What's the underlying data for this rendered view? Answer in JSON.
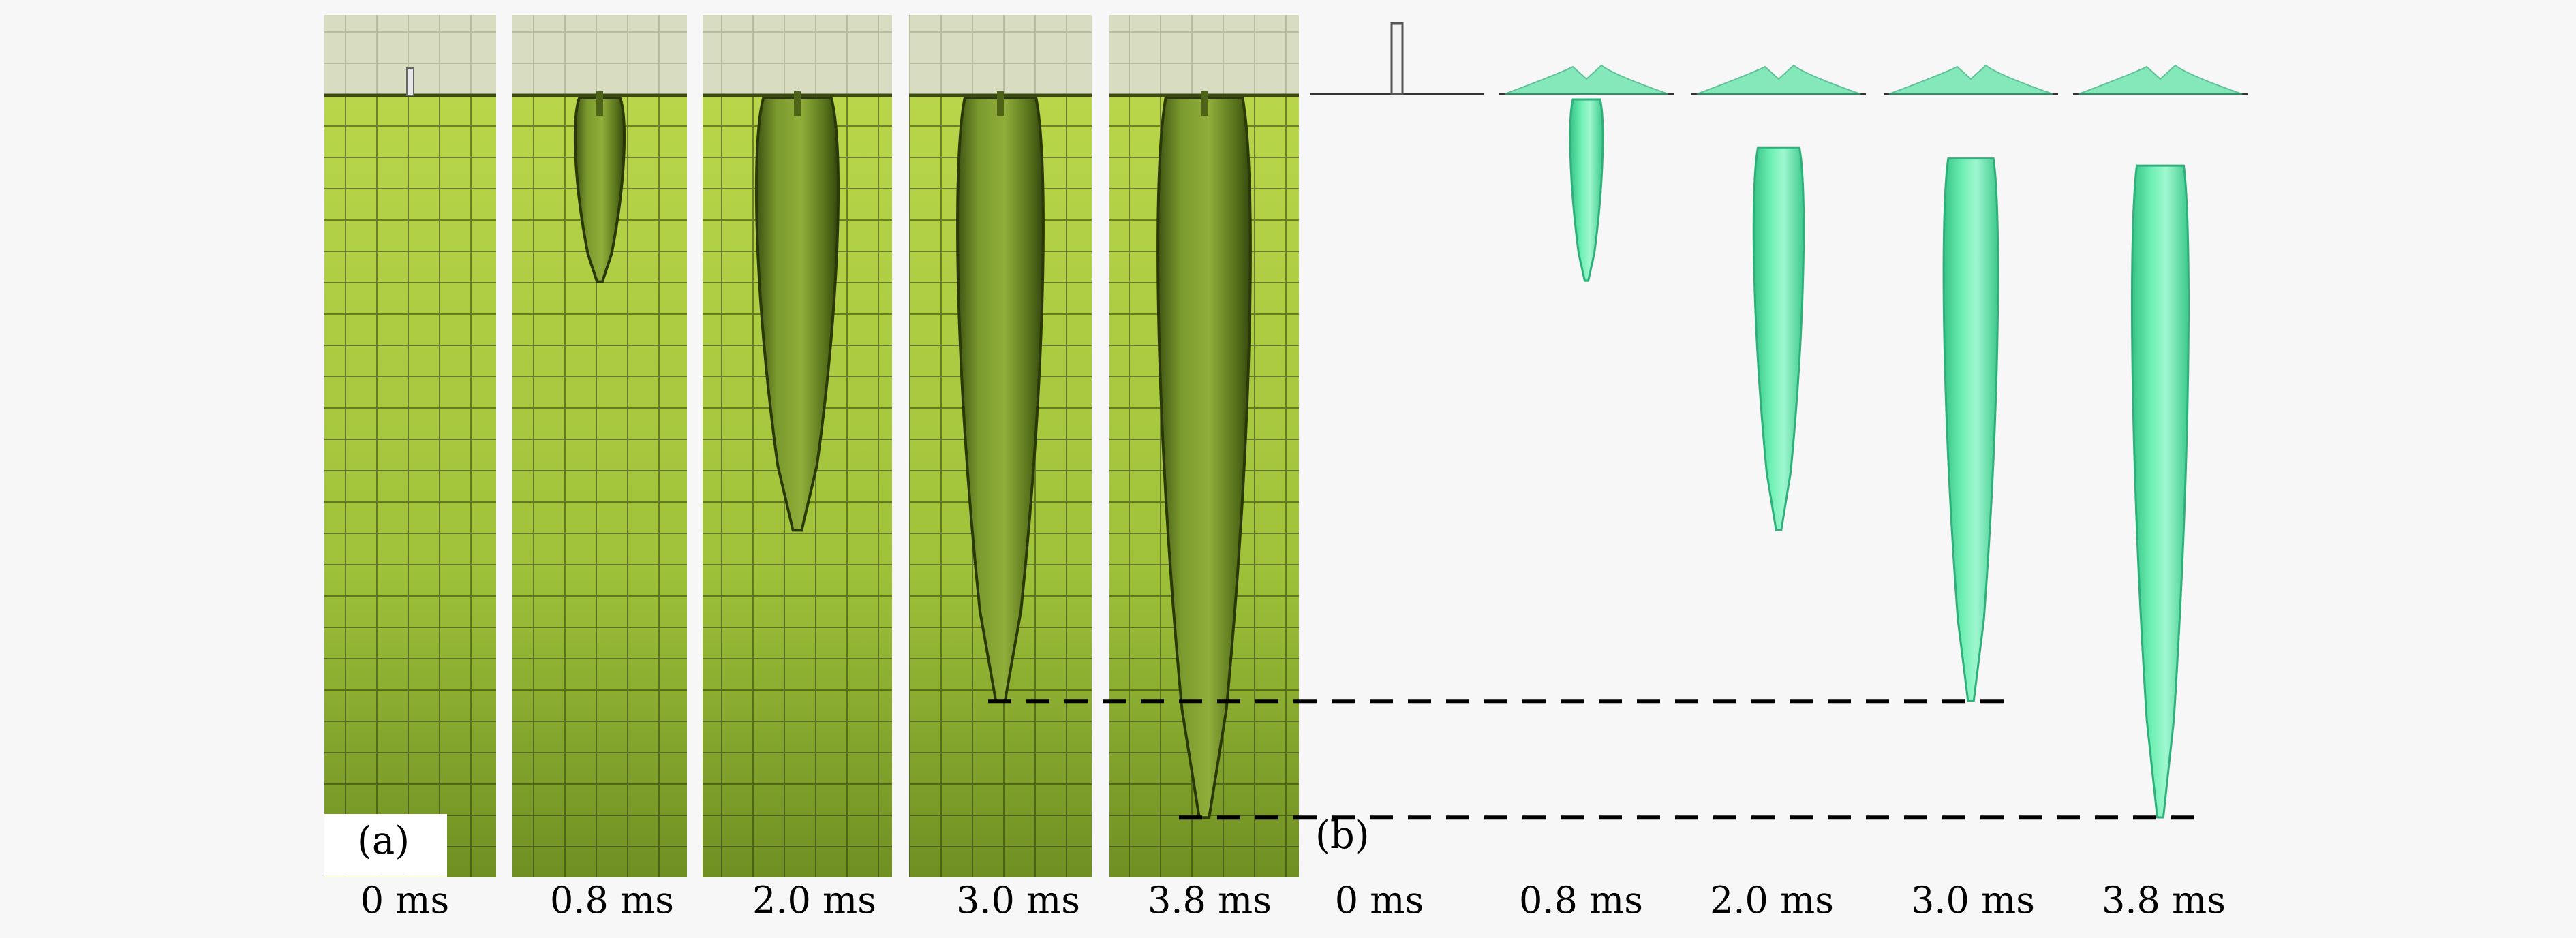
{
  "panels": {
    "a": {
      "label": "(a)",
      "frames": [
        {
          "time": "0 ms",
          "cavity": null
        },
        {
          "time": "0.8 ms",
          "cavity": {
            "depth": 0.24,
            "width": 0.3
          }
        },
        {
          "time": "2.0 ms",
          "cavity": {
            "depth": 0.56,
            "width": 0.46
          }
        },
        {
          "time": "3.0 ms",
          "cavity": {
            "depth": 0.78,
            "width": 0.5
          }
        },
        {
          "time": "3.8 ms",
          "cavity": {
            "depth": 0.93,
            "width": 0.52
          }
        }
      ]
    },
    "b": {
      "label": "(b)",
      "frames": [
        {
          "time": "0 ms",
          "cavity": null
        },
        {
          "time": "0.8 ms",
          "cavity": {
            "depth": 0.24,
            "width": 0.3
          }
        },
        {
          "time": "2.0 ms",
          "cavity": {
            "depth": 0.56,
            "width": 0.46
          }
        },
        {
          "time": "3.0 ms",
          "cavity": {
            "depth": 0.78,
            "width": 0.5
          }
        },
        {
          "time": "3.8 ms",
          "cavity": {
            "depth": 0.93,
            "width": 0.52
          }
        }
      ]
    }
  },
  "colors": {
    "water": "#9fc23a",
    "water_dark": "#5c7a1e",
    "grid": "#2f3a12",
    "cavity_photo": "#6f8a2a",
    "sim_cavity": "#5fe3a6",
    "sim_cavity_edge": "#2fb07a",
    "dash": "#000000"
  }
}
